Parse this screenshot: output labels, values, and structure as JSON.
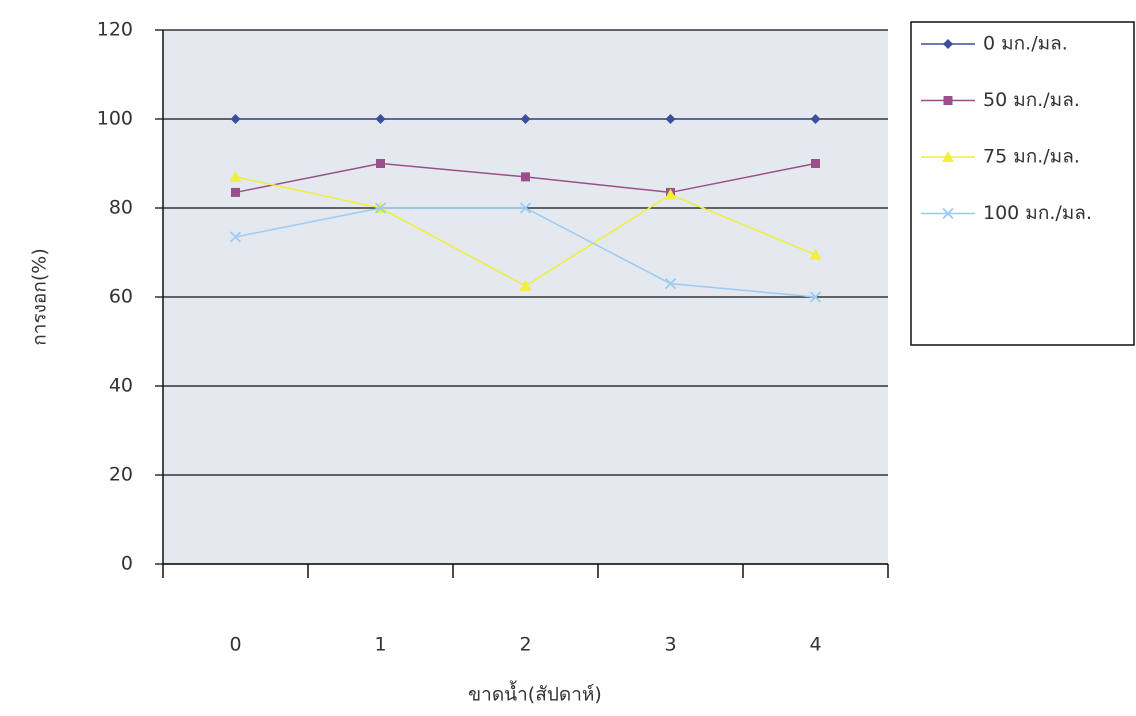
{
  "chart_data": {
    "type": "line",
    "x_label": "ขาดน้ำ(สัปดาห์)",
    "y_label": "การงอก(%)",
    "categories": [
      "0",
      "1",
      "2",
      "3",
      "4"
    ],
    "series": [
      {
        "name": "0 มก./มล.",
        "color": "#3b4f9e",
        "marker": "diamond",
        "values": [
          100,
          100,
          100,
          100,
          100
        ]
      },
      {
        "name": "50 มก./มล.",
        "color": "#9a4f8b",
        "marker": "square",
        "values": [
          83.5,
          90,
          87,
          83.5,
          90
        ]
      },
      {
        "name": "75 มก./มล.",
        "color": "#f2ee3c",
        "marker": "triangle",
        "values": [
          87,
          80,
          62.5,
          83,
          69.5
        ]
      },
      {
        "name": "100 มก./มล.",
        "color": "#9ccbf2",
        "marker": "x",
        "values": [
          73.5,
          80,
          80,
          63,
          60
        ]
      }
    ],
    "ylim": [
      0,
      120
    ],
    "yticks": [
      0,
      20,
      40,
      60,
      80,
      100,
      120
    ],
    "grid": true,
    "legend": "right"
  }
}
